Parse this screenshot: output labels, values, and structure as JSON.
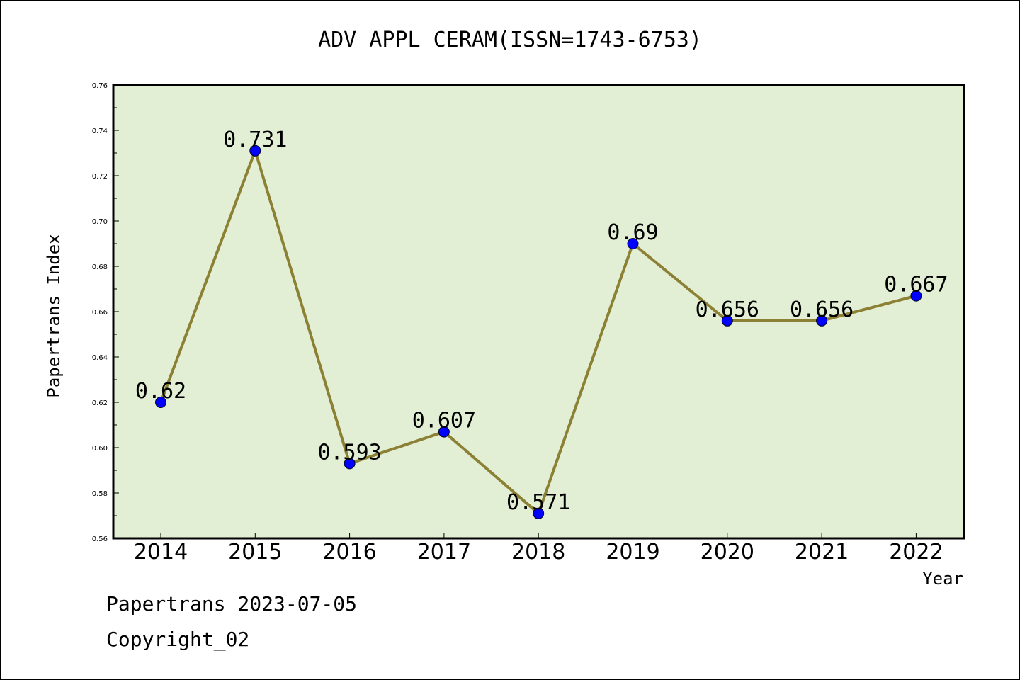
{
  "chart_data": {
    "type": "line",
    "title": "ADV APPL CERAM(ISSN=1743-6753)",
    "xlabel": "Year",
    "ylabel": "Papertrans Index",
    "categories": [
      "2014",
      "2015",
      "2016",
      "2017",
      "2018",
      "2019",
      "2020",
      "2021",
      "2022"
    ],
    "series": [
      {
        "values": [
          0.62,
          0.731,
          0.593,
          0.607,
          0.571,
          0.69,
          0.656,
          0.656,
          0.667
        ]
      }
    ],
    "data_labels": [
      "0.62",
      "0.731",
      "0.593",
      "0.607",
      "0.571",
      "0.69",
      "0.656",
      "0.656",
      "0.667"
    ],
    "ylim": [
      0.56,
      0.76
    ],
    "yticks": [
      "0.56",
      "0.58",
      "0.60",
      "0.62",
      "0.64",
      "0.66",
      "0.68",
      "0.70",
      "0.72",
      "0.74",
      "0.76"
    ],
    "grid": false,
    "colors": {
      "plot_background": "#e2efd4",
      "line": "#8b8034",
      "marker": "#0000ff"
    }
  },
  "footer": {
    "line1": "Papertrans 2023-07-05",
    "line2": "Copyright_02"
  }
}
